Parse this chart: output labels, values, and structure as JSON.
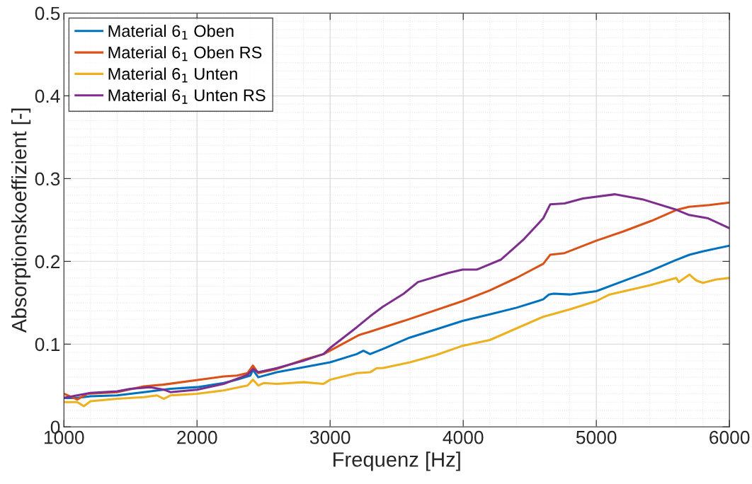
{
  "chart_data": {
    "type": "line",
    "xlabel": "Frequenz [Hz]",
    "ylabel": "Absorptionskoeffizient [-]",
    "xlim": [
      1000,
      6000
    ],
    "xticks": [
      1000,
      2000,
      3000,
      4000,
      5000,
      6000
    ],
    "ylim": [
      0,
      0.5
    ],
    "yticks": [
      0,
      0.1,
      0.2,
      0.3,
      0.4,
      0.5
    ],
    "grid": true,
    "legend": "top left",
    "marker": "none",
    "line_style": "solid",
    "series": [
      {
        "name": "Material 6$_{1}$ Oben",
        "color": "#0072bd",
        "x": [
          1000,
          1100,
          1200,
          1400,
          1600,
          1800,
          2000,
          2200,
          2300,
          2400,
          2420,
          2460,
          2600,
          2800,
          3000,
          3200,
          3250,
          3300,
          3394,
          3600,
          3800,
          3995,
          4200,
          4400,
          4600,
          4644,
          4680,
          4800,
          5000,
          5200,
          5400,
          5590,
          5700,
          5800,
          6000
        ],
        "values": [
          0.035,
          0.035,
          0.037,
          0.038,
          0.042,
          0.046,
          0.048,
          0.053,
          0.057,
          0.062,
          0.069,
          0.06,
          0.066,
          0.072,
          0.078,
          0.088,
          0.092,
          0.088,
          0.094,
          0.108,
          0.118,
          0.128,
          0.136,
          0.144,
          0.154,
          0.16,
          0.161,
          0.16,
          0.164,
          0.176,
          0.188,
          0.201,
          0.208,
          0.212,
          0.219
        ]
      },
      {
        "name": "Material 6$_{1}$ Oben RS",
        "color": "#d95319",
        "x": [
          1000,
          1100,
          1176,
          1400,
          1600,
          1745,
          2064,
          2200,
          2300,
          2380,
          2420,
          2460,
          2600,
          2800,
          2952,
          3218,
          3300,
          3394,
          3553,
          3995,
          4200,
          4400,
          4601,
          4654,
          4761,
          5000,
          5200,
          5415,
          5600,
          5697,
          5850,
          6000
        ],
        "values": [
          0.04,
          0.033,
          0.04,
          0.042,
          0.049,
          0.051,
          0.058,
          0.061,
          0.062,
          0.065,
          0.074,
          0.065,
          0.07,
          0.081,
          0.088,
          0.111,
          0.115,
          0.12,
          0.128,
          0.152,
          0.165,
          0.18,
          0.197,
          0.208,
          0.21,
          0.225,
          0.236,
          0.249,
          0.262,
          0.266,
          0.268,
          0.271
        ]
      },
      {
        "name": "Material 6$_{1}$ Unten",
        "color": "#edb120",
        "x": [
          1000,
          1100,
          1150,
          1200,
          1400,
          1600,
          1700,
          1750,
          1800,
          2000,
          2200,
          2380,
          2420,
          2460,
          2500,
          2600,
          2800,
          2950,
          3000,
          3200,
          3300,
          3350,
          3394,
          3600,
          3800,
          3995,
          4200,
          4600,
          4800,
          5000,
          5100,
          5400,
          5600,
          5620,
          5700,
          5750,
          5800,
          5900,
          6000
        ],
        "values": [
          0.03,
          0.03,
          0.025,
          0.031,
          0.034,
          0.036,
          0.038,
          0.034,
          0.038,
          0.04,
          0.044,
          0.05,
          0.057,
          0.05,
          0.053,
          0.052,
          0.054,
          0.052,
          0.057,
          0.065,
          0.066,
          0.071,
          0.071,
          0.078,
          0.087,
          0.098,
          0.105,
          0.133,
          0.142,
          0.152,
          0.16,
          0.171,
          0.18,
          0.175,
          0.184,
          0.177,
          0.174,
          0.178,
          0.18
        ]
      },
      {
        "name": "Material 6$_{1}$ Unten RS",
        "color": "#7e2f8e",
        "x": [
          1000,
          1100,
          1200,
          1400,
          1500,
          1650,
          1750,
          1800,
          2000,
          2200,
          2380,
          2420,
          2460,
          2600,
          2800,
          2950,
          3005,
          3197,
          3303,
          3394,
          3553,
          3660,
          3888,
          3995,
          4101,
          4282,
          4457,
          4601,
          4654,
          4761,
          4899,
          5138,
          5346,
          5590,
          5697,
          5840,
          6000
        ],
        "values": [
          0.035,
          0.038,
          0.041,
          0.043,
          0.046,
          0.048,
          0.045,
          0.042,
          0.045,
          0.052,
          0.063,
          0.07,
          0.066,
          0.071,
          0.08,
          0.088,
          0.096,
          0.12,
          0.134,
          0.145,
          0.161,
          0.175,
          0.186,
          0.19,
          0.19,
          0.202,
          0.227,
          0.252,
          0.269,
          0.27,
          0.276,
          0.281,
          0.275,
          0.263,
          0.256,
          0.252,
          0.24
        ]
      }
    ]
  }
}
